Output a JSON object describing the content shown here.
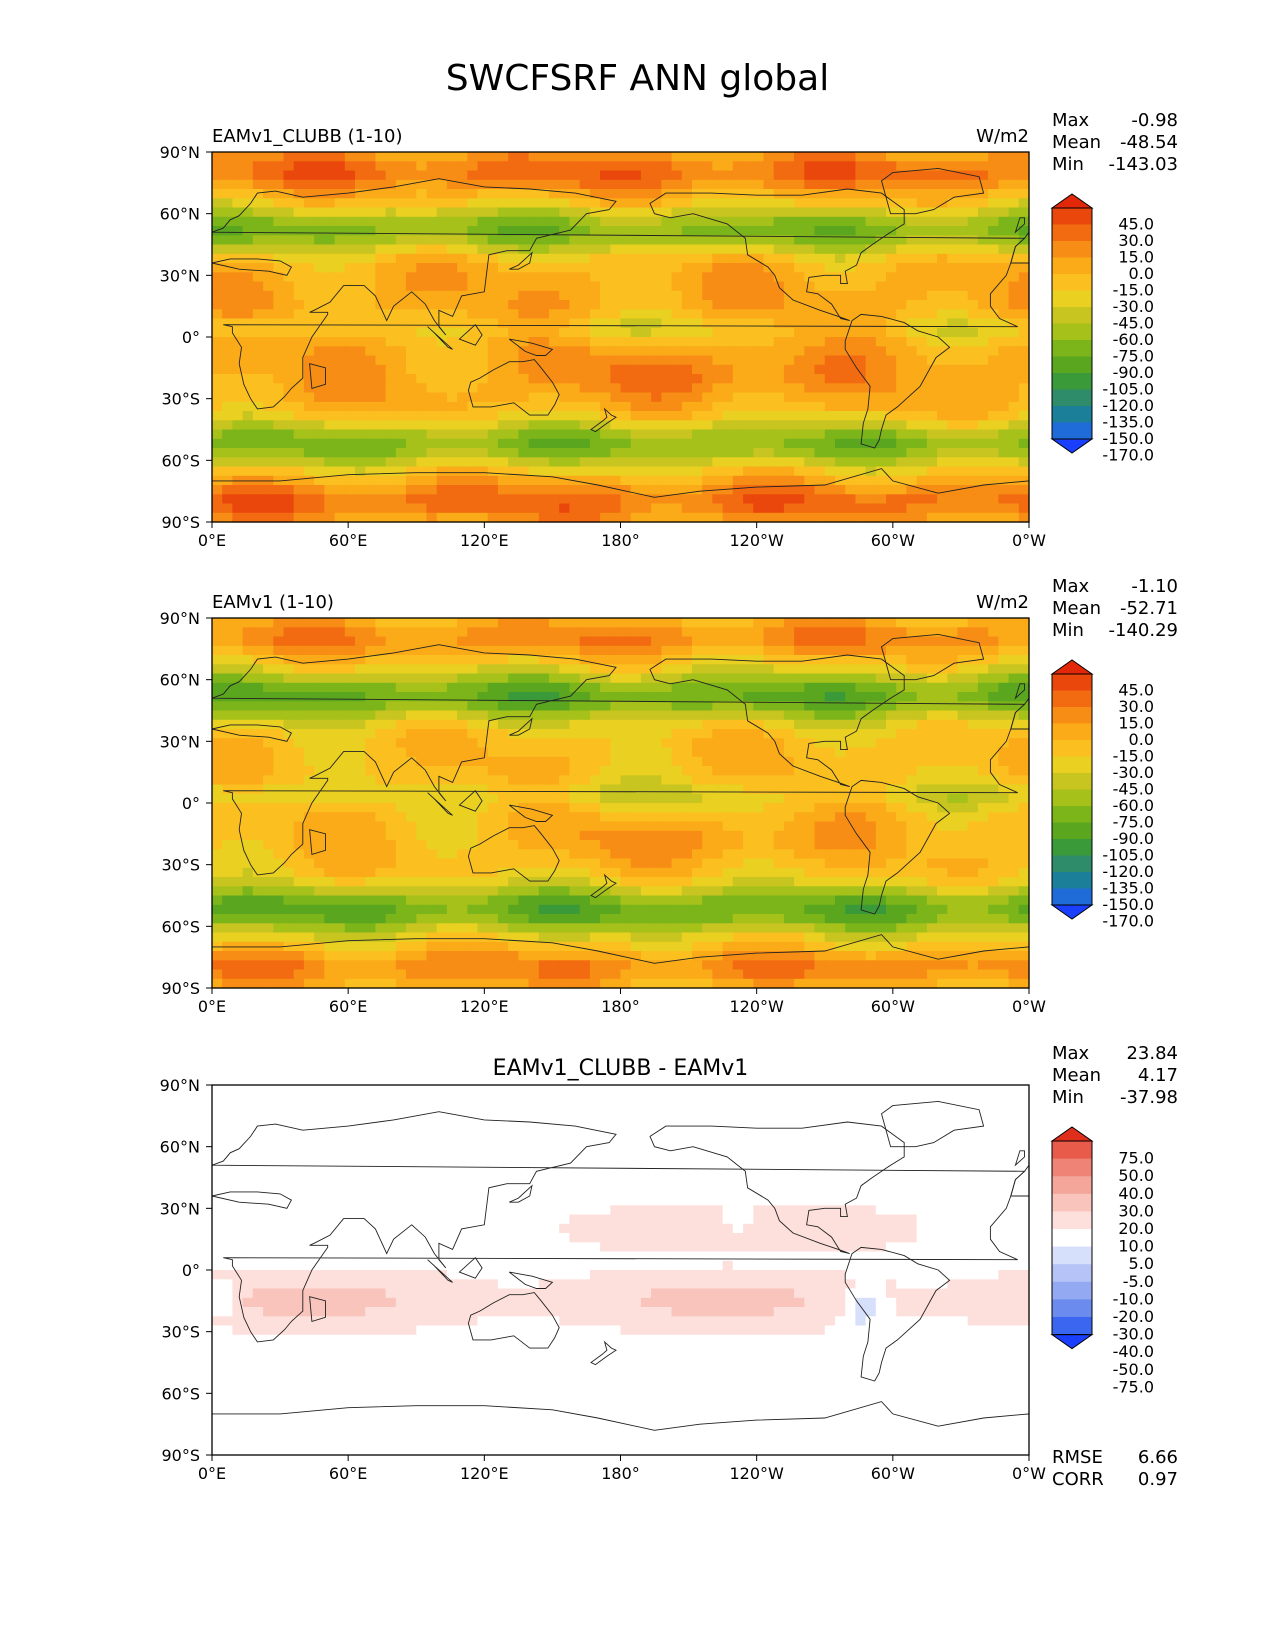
{
  "title": "SWCFSRF ANN global",
  "lon_ticks": [
    "0°E",
    "60°E",
    "120°E",
    "180°",
    "120°W",
    "60°W",
    "0°W"
  ],
  "lat_ticks": [
    "90°N",
    "60°N",
    "30°N",
    "0°",
    "30°S",
    "60°S",
    "90°S"
  ],
  "colors": {
    "model_levels": [
      "#1b3fff",
      "#1f6bd8",
      "#1c7f9a",
      "#2f8c6a",
      "#3a9a3a",
      "#5aa61e",
      "#7cb51a",
      "#a5c11a",
      "#c8c520",
      "#ead020",
      "#fbc020",
      "#fbaa18",
      "#f78d14",
      "#f26b10",
      "#ea470c",
      "#e22808"
    ],
    "diff_levels": [
      "#1b3fff",
      "#3b66f0",
      "#6b8cee",
      "#93aaf2",
      "#b5c3f6",
      "#d7e0fa",
      "#ffffff",
      "#fde0dc",
      "#f8c4bc",
      "#f4a69a",
      "#ee8376",
      "#e85a4a",
      "#e02e1c"
    ]
  },
  "chart_data": [
    {
      "type": "heatmap",
      "subtitle_left": "EAMv1_CLUBB (1-10)",
      "units": "W/m2",
      "stats": [
        {
          "label": "Max",
          "value": "-0.98"
        },
        {
          "label": "Mean",
          "value": "-48.54"
        },
        {
          "label": "Min",
          "value": "-143.03"
        }
      ],
      "colorbar_labels": [
        "45.0",
        "30.0",
        "15.0",
        "0.0",
        "-15.0",
        "-30.0",
        "-45.0",
        "-60.0",
        "-75.0",
        "-90.0",
        "-105.0",
        "-120.0",
        "-135.0",
        "-150.0",
        "-170.0"
      ],
      "xlabel": "",
      "ylabel": "",
      "xlim": [
        0,
        360
      ],
      "ylim": [
        -90,
        90
      ]
    },
    {
      "type": "heatmap",
      "subtitle_left": "EAMv1 (1-10)",
      "units": "W/m2",
      "stats": [
        {
          "label": "Max",
          "value": "-1.10"
        },
        {
          "label": "Mean",
          "value": "-52.71"
        },
        {
          "label": "Min",
          "value": "-140.29"
        }
      ],
      "colorbar_labels": [
        "45.0",
        "30.0",
        "15.0",
        "0.0",
        "-15.0",
        "-30.0",
        "-45.0",
        "-60.0",
        "-75.0",
        "-90.0",
        "-105.0",
        "-120.0",
        "-135.0",
        "-150.0",
        "-170.0"
      ],
      "xlabel": "",
      "ylabel": "",
      "xlim": [
        0,
        360
      ],
      "ylim": [
        -90,
        90
      ]
    },
    {
      "type": "heatmap",
      "subtitle_center": "EAMv1_CLUBB - EAMv1",
      "stats": [
        {
          "label": "Max",
          "value": "23.84"
        },
        {
          "label": "Mean",
          "value": "4.17"
        },
        {
          "label": "Min",
          "value": "-37.98"
        }
      ],
      "colorbar_labels": [
        "75.0",
        "50.0",
        "40.0",
        "30.0",
        "20.0",
        "10.0",
        "5.0",
        "-5.0",
        "-10.0",
        "-20.0",
        "-30.0",
        "-40.0",
        "-50.0",
        "-75.0"
      ],
      "metrics": [
        {
          "label": "RMSE",
          "value": "6.66"
        },
        {
          "label": "CORR",
          "value": "0.97"
        }
      ],
      "xlabel": "",
      "ylabel": "",
      "xlim": [
        0,
        360
      ],
      "ylim": [
        -90,
        90
      ]
    }
  ]
}
